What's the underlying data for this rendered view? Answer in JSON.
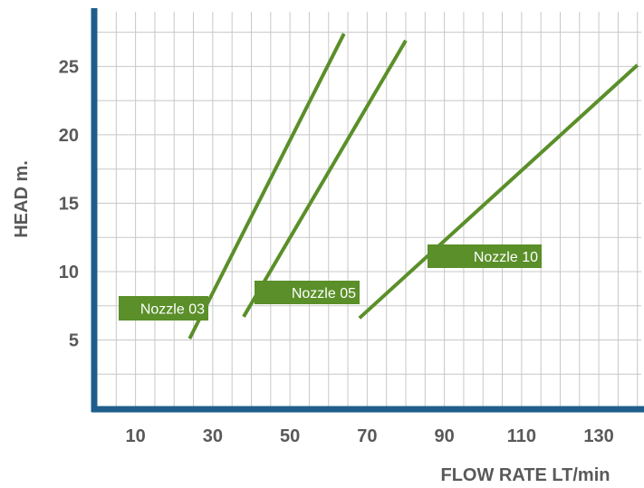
{
  "chart_data": {
    "type": "line",
    "title": "",
    "xlabel": "FLOW  RATE LT/min",
    "ylabel": "HEAD m.",
    "x_ticks": [
      10,
      30,
      50,
      70,
      90,
      110,
      130
    ],
    "y_ticks": [
      5,
      10,
      15,
      20,
      25
    ],
    "xlim": [
      0,
      141
    ],
    "ylim": [
      0,
      29
    ],
    "grid": true,
    "series": [
      {
        "name": "Nozzle 03",
        "x": [
          24,
          64
        ],
        "y": [
          5.1,
          27.4
        ]
      },
      {
        "name": "Nozzle 05",
        "x": [
          38,
          80
        ],
        "y": [
          6.7,
          26.9
        ]
      },
      {
        "name": "Nozzle 10",
        "x": [
          68,
          140
        ],
        "y": [
          6.6,
          25.1
        ]
      }
    ]
  },
  "colors": {
    "series": "#5a8f29",
    "axis": "#1f5e8c",
    "grid": "#c8c8c8",
    "text": "#595959"
  }
}
